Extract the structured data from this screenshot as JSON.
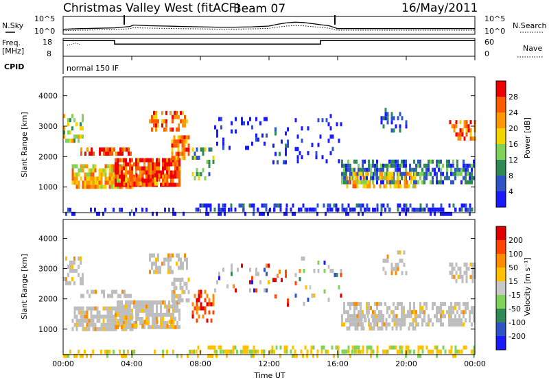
{
  "header": {
    "station": "Christmas Valley West (fitACF)",
    "beam": "Beam 07",
    "date": "16/May/2011"
  },
  "colors": {
    "power_scale": [
      "#1a1aff",
      "#2e54c8",
      "#2f8a55",
      "#7fd35b",
      "#f2d400",
      "#ff9800",
      "#ff5a00",
      "#ee0000"
    ],
    "velocity_scale": [
      "#1a1aff",
      "#2e54c8",
      "#2f8a55",
      "#7fd35b",
      "#c8c8c8",
      "#ffc000",
      "#ff8c00",
      "#ff4500",
      "#e00000"
    ],
    "ground_scatter": "#bebebe"
  },
  "chart_data": [
    {
      "type": "line",
      "panel": "noise",
      "series": [
        {
          "name": "N.Sky",
          "style": "solid"
        },
        {
          "name": "N.Search",
          "style": "dotted"
        }
      ],
      "y_ticks": [
        "10^5",
        "10^0"
      ],
      "x": [
        0,
        0.5,
        1,
        2,
        3,
        3.9,
        4.1,
        5,
        6,
        7,
        8,
        9,
        10,
        11,
        12,
        12.5,
        13,
        13.5,
        14,
        14.5,
        15,
        15.5,
        16,
        17,
        18,
        19,
        20,
        21,
        22,
        23,
        24
      ],
      "values": [
        1.4,
        1.5,
        1.6,
        1.7,
        1.8,
        2.2,
        2.6,
        2.4,
        2.3,
        2.2,
        2.1,
        2.0,
        2.0,
        2.1,
        2.3,
        2.8,
        3.2,
        3.4,
        3.3,
        3.0,
        2.7,
        2.4,
        1.6,
        1.6,
        1.6,
        1.6,
        1.6,
        1.6,
        1.6,
        1.6,
        1.6
      ]
    },
    {
      "type": "line",
      "panel": "frequency",
      "series": [
        {
          "name": "Freq.",
          "style": "solid"
        },
        {
          "name": "Nave",
          "style": "dotted"
        }
      ],
      "ylabel": "Freq.\n[MHz]",
      "left_ticks": [
        "18",
        "8"
      ],
      "right_ticks": [
        "60",
        "0"
      ],
      "x": [
        0,
        3,
        3,
        15,
        15,
        24
      ],
      "values": [
        16.8,
        16.8,
        14.8,
        14.8,
        16.8,
        16.8
      ]
    },
    {
      "type": "table",
      "panel": "cpid",
      "label": "CPID",
      "text": "normal 150 IF"
    },
    {
      "type": "heatmap",
      "panel": "power",
      "ylabel": "Slant Range [km]",
      "y_ticks": [
        "1000",
        "2000",
        "3000",
        "4000"
      ],
      "colorbar_label": "Power [dB]",
      "colorbar_ticks": [
        "4",
        "8",
        "12",
        "16",
        "20",
        "24",
        "28"
      ]
    },
    {
      "type": "heatmap",
      "panel": "velocity",
      "ylabel": "Slant Range [km]",
      "y_ticks": [
        "1000",
        "2000",
        "3000",
        "4000"
      ],
      "colorbar_label": "Velocity [m s⁻¹]",
      "colorbar_ticks": [
        "200",
        "100",
        "50",
        "15",
        "-15",
        "-50",
        "-100",
        "-200"
      ]
    }
  ],
  "axes": {
    "x_ticks": [
      "00:00",
      "04:00",
      "08:00",
      "12:00",
      "16:00",
      "20:00",
      "00:00"
    ],
    "xlabel": "Time UT"
  }
}
